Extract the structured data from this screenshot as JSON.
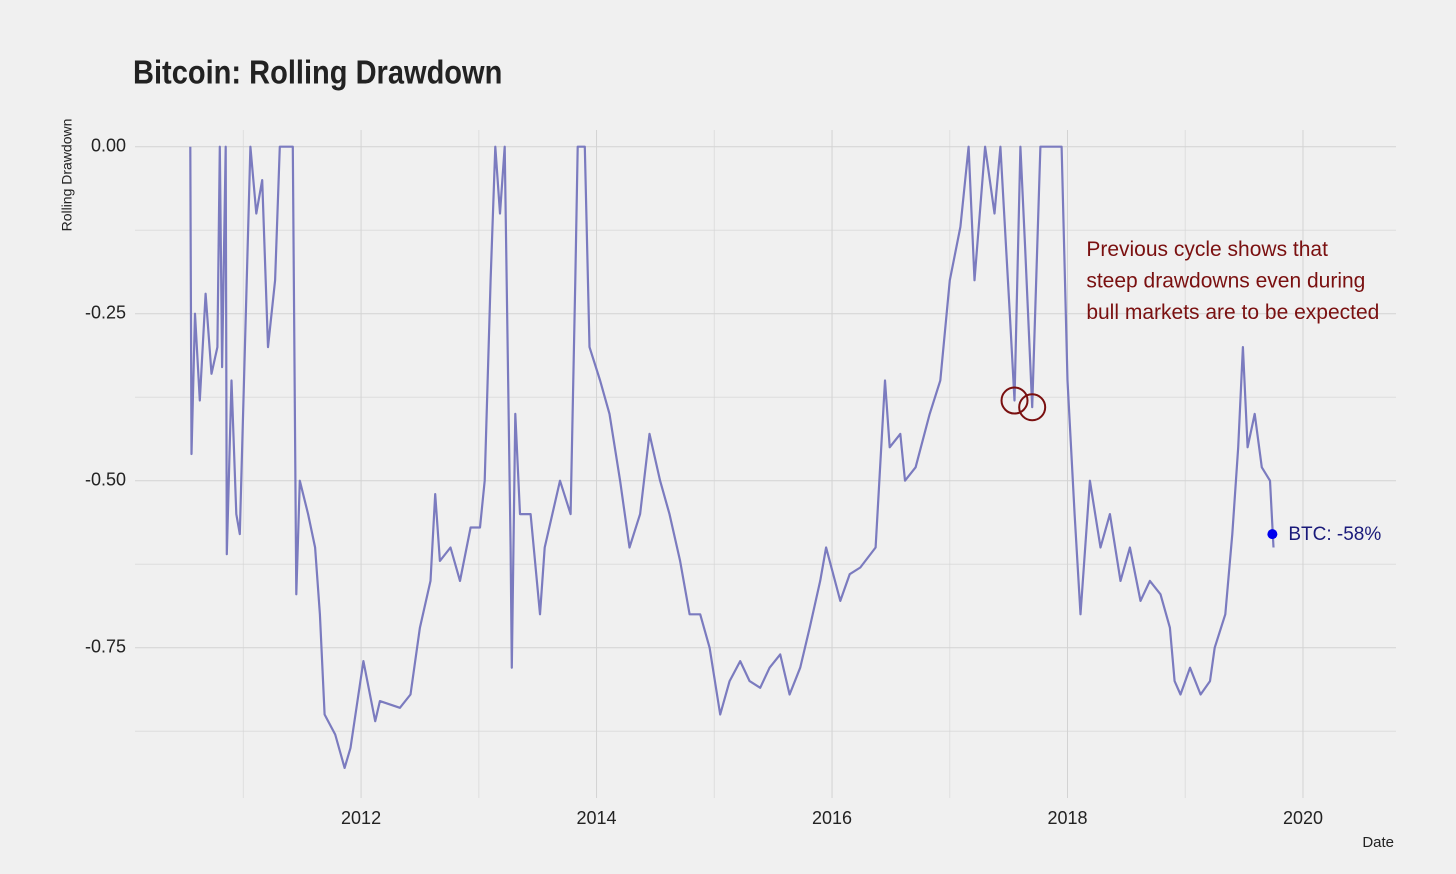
{
  "chart_data": {
    "type": "line",
    "title": "Bitcoin: Rolling Drawdown",
    "x_label": "Date",
    "y_label": "Rolling Drawdown",
    "xlim": [
      2010.08,
      2020.79
    ],
    "ylim": [
      -0.975,
      0.025
    ],
    "xticks": [
      2012,
      2014,
      2016,
      2018,
      2020
    ],
    "yticks": [
      {
        "value": 0,
        "label": "0.00"
      },
      {
        "value": -0.25,
        "label": "-0.25"
      },
      {
        "value": -0.5,
        "label": "-0.50"
      },
      {
        "value": -0.75,
        "label": "-0.75"
      }
    ],
    "grid": true,
    "series": [
      {
        "name": "Rolling Drawdown",
        "color": "#7b7bbf",
        "x": [
          2010.55,
          2010.56,
          2010.59,
          2010.63,
          2010.68,
          2010.73,
          2010.78,
          2010.8,
          2010.82,
          2010.85,
          2010.86,
          2010.9,
          2010.94,
          2010.97,
          2011.06,
          2011.11,
          2011.16,
          2011.21,
          2011.27,
          2011.31,
          2011.37,
          2011.42,
          2011.45,
          2011.48,
          2011.55,
          2011.61,
          2011.65,
          2011.69,
          2011.78,
          2011.86,
          2011.91,
          2012.02,
          2012.12,
          2012.16,
          2012.33,
          2012.42,
          2012.5,
          2012.59,
          2012.63,
          2012.67,
          2012.76,
          2012.84,
          2012.93,
          2013.01,
          2013.05,
          2013.1,
          2013.14,
          2013.18,
          2013.22,
          2013.27,
          2013.28,
          2013.31,
          2013.35,
          2013.44,
          2013.52,
          2013.56,
          2013.69,
          2013.78,
          2013.82,
          2013.84,
          2013.9,
          2013.94,
          2014.03,
          2014.11,
          2014.2,
          2014.28,
          2014.37,
          2014.45,
          2014.54,
          2014.62,
          2014.71,
          2014.79,
          2014.88,
          2014.96,
          2015.05,
          2015.13,
          2015.22,
          2015.3,
          2015.39,
          2015.47,
          2015.56,
          2015.64,
          2015.73,
          2015.81,
          2015.9,
          2015.95,
          2016.07,
          2016.15,
          2016.24,
          2016.37,
          2016.45,
          2016.49,
          2016.58,
          2016.62,
          2016.71,
          2016.83,
          2016.92,
          2017.0,
          2017.09,
          2017.16,
          2017.21,
          2017.3,
          2017.38,
          2017.43,
          2017.51,
          2017.55,
          2017.6,
          2017.64,
          2017.7,
          2017.77,
          2017.85,
          2017.95,
          2018.0,
          2018.06,
          2018.11,
          2018.19,
          2018.28,
          2018.36,
          2018.45,
          2018.53,
          2018.62,
          2018.7,
          2018.79,
          2018.87,
          2018.91,
          2018.96,
          2019.04,
          2019.13,
          2019.21,
          2019.25,
          2019.34,
          2019.4,
          2019.45,
          2019.49,
          2019.53,
          2019.59,
          2019.65,
          2019.72,
          2019.75
        ],
        "values": [
          0,
          -0.46,
          -0.25,
          -0.38,
          -0.22,
          -0.34,
          -0.3,
          0,
          -0.33,
          0,
          -0.61,
          -0.35,
          -0.55,
          -0.58,
          0,
          -0.1,
          -0.05,
          -0.3,
          -0.2,
          0,
          0,
          0,
          -0.67,
          -0.5,
          -0.55,
          -0.6,
          -0.7,
          -0.85,
          -0.88,
          -0.93,
          -0.9,
          -0.77,
          -0.86,
          -0.83,
          -0.84,
          -0.82,
          -0.72,
          -0.65,
          -0.52,
          -0.62,
          -0.6,
          -0.65,
          -0.57,
          -0.57,
          -0.5,
          -0.2,
          0,
          -0.1,
          0,
          -0.6,
          -0.78,
          -0.4,
          -0.55,
          -0.55,
          -0.7,
          -0.6,
          -0.5,
          -0.55,
          -0.2,
          0,
          0,
          -0.3,
          -0.35,
          -0.4,
          -0.5,
          -0.6,
          -0.55,
          -0.43,
          -0.5,
          -0.55,
          -0.62,
          -0.7,
          -0.7,
          -0.75,
          -0.85,
          -0.8,
          -0.77,
          -0.8,
          -0.81,
          -0.78,
          -0.76,
          -0.82,
          -0.78,
          -0.72,
          -0.65,
          -0.6,
          -0.68,
          -0.64,
          -0.63,
          -0.6,
          -0.35,
          -0.45,
          -0.43,
          -0.5,
          -0.48,
          -0.4,
          -0.35,
          -0.2,
          -0.12,
          0,
          -0.2,
          0,
          -0.1,
          0,
          -0.25,
          -0.38,
          0,
          -0.15,
          -0.39,
          0,
          0,
          0,
          -0.35,
          -0.55,
          -0.7,
          -0.5,
          -0.6,
          -0.55,
          -0.65,
          -0.6,
          -0.68,
          -0.65,
          -0.67,
          -0.72,
          -0.8,
          -0.82,
          -0.78,
          -0.82,
          -0.8,
          -0.75,
          -0.7,
          -0.58,
          -0.45,
          -0.3,
          -0.45,
          -0.4,
          -0.48,
          -0.5,
          -0.6
        ]
      }
    ],
    "point_annotation": {
      "x": 2019.74,
      "y": -0.58,
      "text": "BTC: -58%",
      "color": "#0000ee"
    },
    "highlights": [
      {
        "x": 2017.55,
        "y": -0.38
      },
      {
        "x": 2017.7,
        "y": -0.39
      }
    ],
    "highlight_color": "#7a1010",
    "note": {
      "lines": [
        "Previous cycle shows that",
        "steep drawdowns even during",
        "bull markets are to be expected"
      ],
      "x": 2018.16,
      "y": -0.155,
      "color": "#7a1010"
    }
  }
}
